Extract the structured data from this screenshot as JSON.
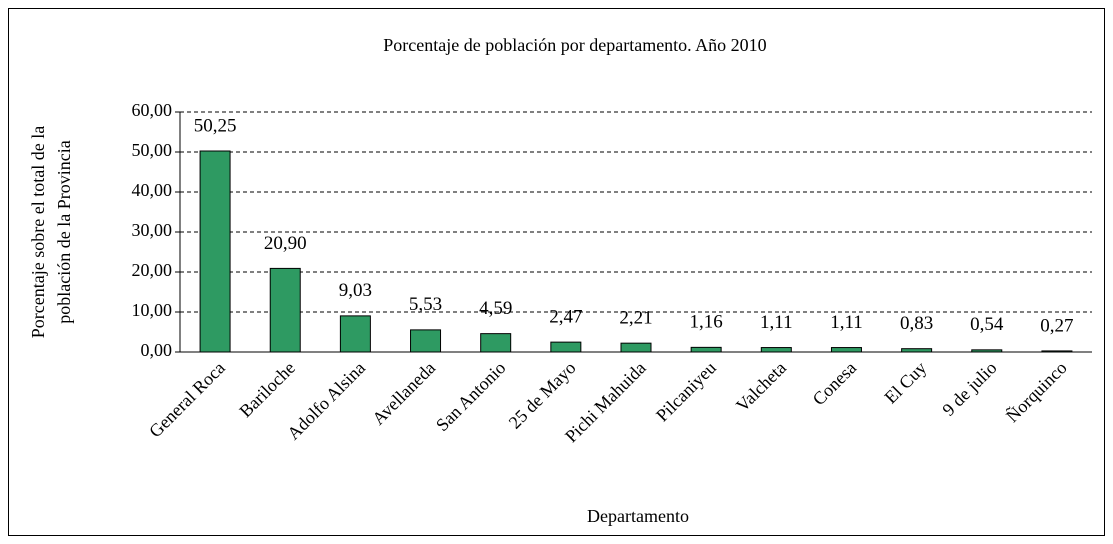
{
  "chart_data": {
    "type": "bar",
    "title": "Porcentaje de población por departamento. Año 2010",
    "x_label": "Departamento",
    "y_label": [
      "Porcentaje sobre el total de la",
      "población de la Provincia"
    ],
    "categories": [
      "General Roca",
      "Bariloche",
      "Adolfo Alsina",
      "Avellaneda",
      "San Antonio",
      "25 de Mayo",
      "Pichi Mahuida",
      "Pilcaniyeu",
      "Valcheta",
      "Conesa",
      "El Cuy",
      "9 de julio",
      "Ñorquinco"
    ],
    "values": [
      50.25,
      20.9,
      9.03,
      5.53,
      4.59,
      2.47,
      2.21,
      1.16,
      1.11,
      1.11,
      0.83,
      0.54,
      0.27
    ],
    "value_labels": [
      "50,25",
      "20,90",
      "9,03",
      "5,53",
      "4,59",
      "2,47",
      "2,21",
      "1,16",
      "1,11",
      "1,11",
      "0,83",
      "0,54",
      "0,27"
    ],
    "color": "#2e9a62",
    "ylim": [
      0,
      60
    ],
    "yticks": [
      {
        "value": 0,
        "label": "0,00"
      },
      {
        "value": 10,
        "label": "10,00"
      },
      {
        "value": 20,
        "label": "20,00"
      },
      {
        "value": 30,
        "label": "30,00"
      },
      {
        "value": 40,
        "label": "40,00"
      },
      {
        "value": 50,
        "label": "50,00"
      },
      {
        "value": 60,
        "label": "60,00"
      }
    ],
    "grid": true
  }
}
